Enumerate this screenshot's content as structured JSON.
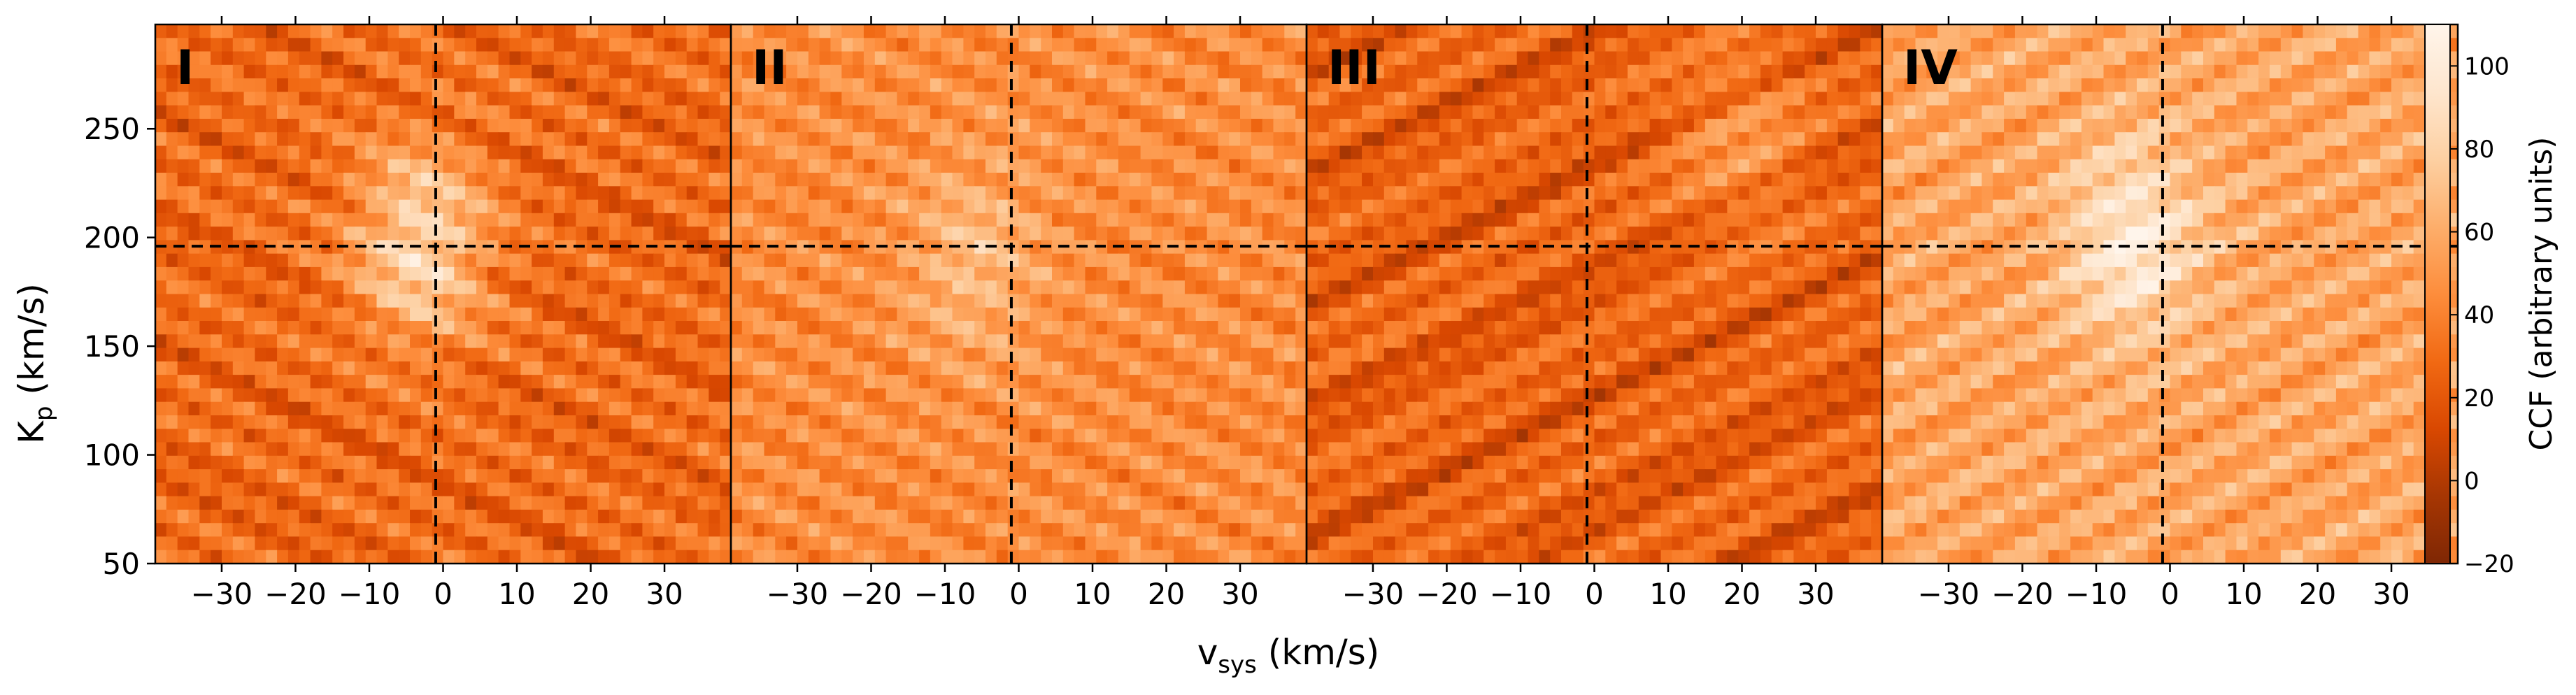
{
  "chart_data": {
    "type": "heatmap",
    "xlabel_main": "v",
    "xlabel_sub": "sys",
    "xlabel_unit": " (km/s)",
    "ylabel_main": "K",
    "ylabel_sub": "p",
    "ylabel_unit": " (km/s)",
    "xlim": [
      -39,
      39
    ],
    "ylim": [
      50,
      298
    ],
    "x_ticks": [
      -30,
      -20,
      -10,
      0,
      10,
      20,
      30
    ],
    "x_tick_labels": [
      "−30",
      "−20",
      "−10",
      "0",
      "10",
      "20",
      "30"
    ],
    "y_ticks": [
      50,
      100,
      150,
      200,
      250
    ],
    "y_tick_labels": [
      "50",
      "100",
      "150",
      "200",
      "250"
    ],
    "marker_vsys": -1,
    "marker_kp": 196,
    "colorbar": {
      "label": "CCF (arbitrary units)",
      "range": [
        -20,
        110
      ],
      "ticks": [
        -20,
        0,
        20,
        40,
        60,
        80,
        100
      ],
      "tick_labels": [
        "−20",
        "0",
        "20",
        "40",
        "60",
        "80",
        "100"
      ],
      "colors": [
        "#7f2704",
        "#a63603",
        "#d94801",
        "#f16913",
        "#fd8d3c",
        "#fdae6b",
        "#fdd0a2",
        "#fee6ce",
        "#fff5eb"
      ]
    },
    "panels": [
      {
        "label": "I",
        "baseline": 32,
        "peak": 88,
        "peak_vsys": -3,
        "peak_kp": 197,
        "streak_slope": -0.6,
        "texture_amp": 14,
        "dark_amp": 10
      },
      {
        "label": "II",
        "baseline": 46,
        "peak": 70,
        "peak_vsys": -6,
        "peak_kp": 190,
        "streak_slope": -0.6,
        "texture_amp": 12,
        "dark_amp": 4
      },
      {
        "label": "III",
        "baseline": 30,
        "peak": 52,
        "peak_vsys": 20,
        "peak_kp": 245,
        "streak_slope": 0.6,
        "texture_amp": 12,
        "dark_amp": 16
      },
      {
        "label": "IV",
        "baseline": 58,
        "peak": 100,
        "peak_vsys": -5,
        "peak_kp": 198,
        "streak_slope": 0.55,
        "texture_amp": 13,
        "dark_amp": 4
      }
    ]
  }
}
